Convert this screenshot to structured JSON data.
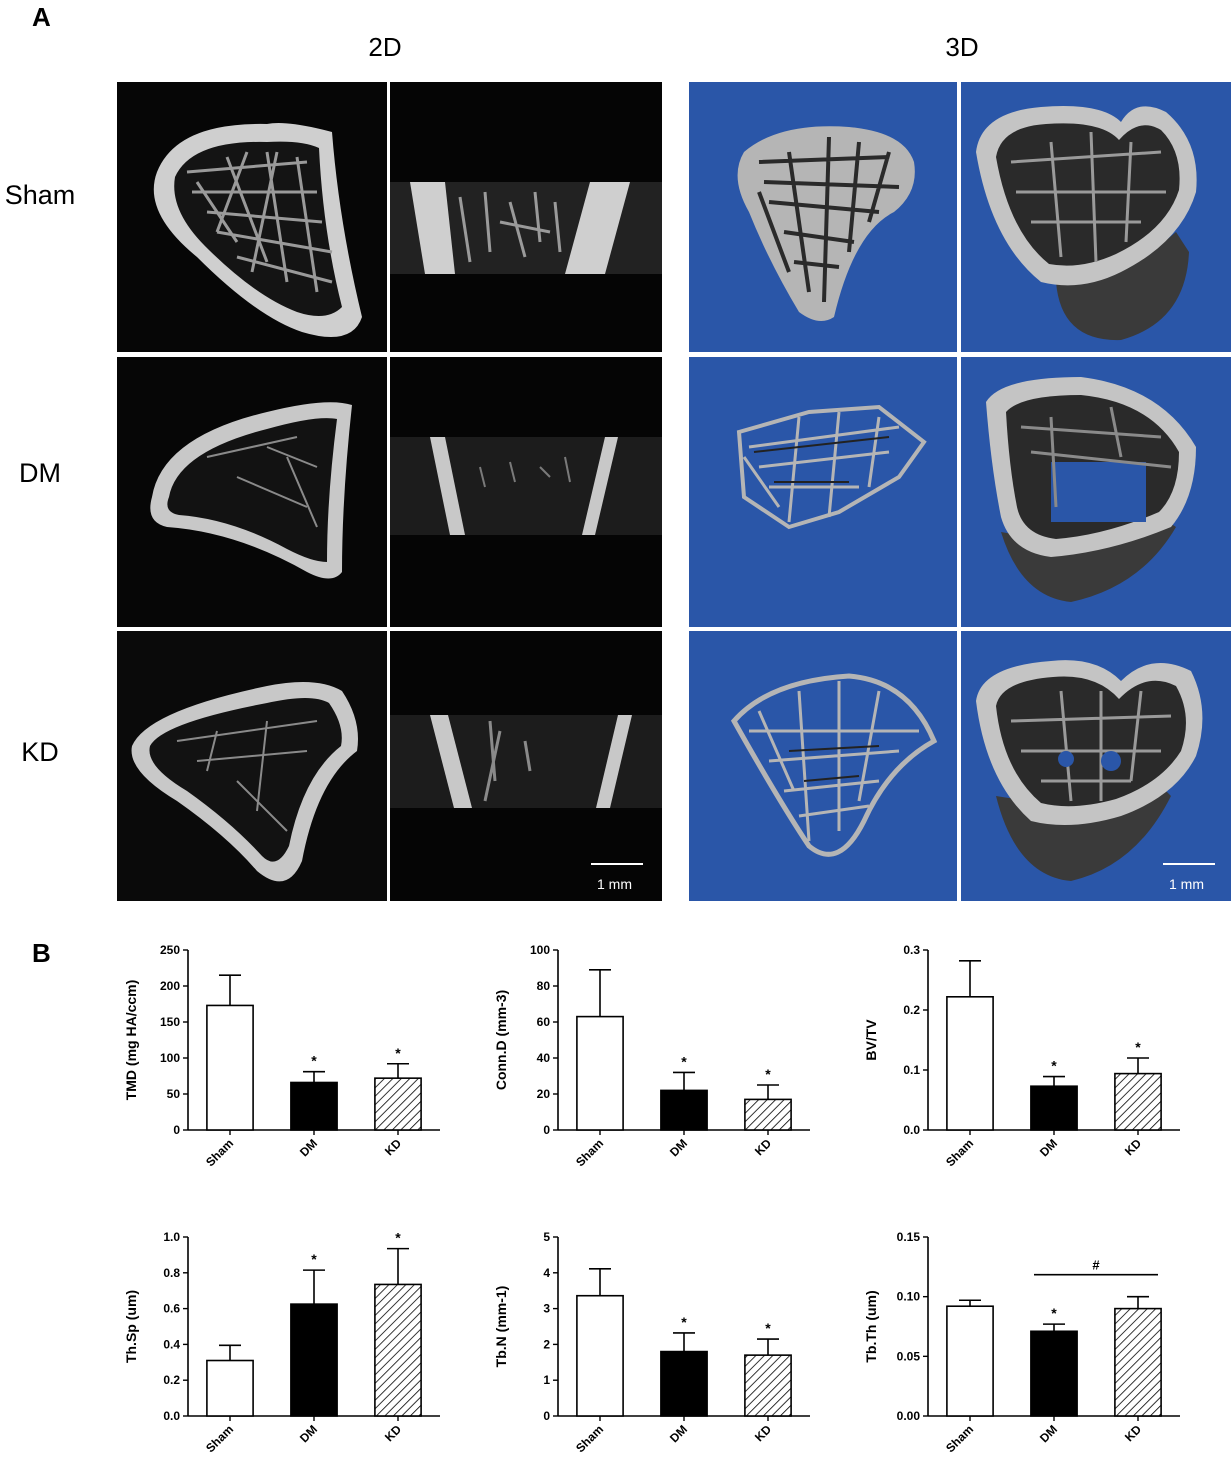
{
  "panel_labels": {
    "a": "A",
    "b": "B"
  },
  "panel_a": {
    "column_headers": [
      "2D",
      "3D"
    ],
    "row_labels": [
      "Sham",
      "DM",
      "KD"
    ],
    "scale_bar_2d": "1 mm",
    "scale_bar_3d": "1 mm",
    "colors": {
      "ct_background": "#050505",
      "render_background": "#2a56a8",
      "bone": "#cfcfcf"
    }
  },
  "chart_data": [
    {
      "type": "bar",
      "categories": [
        "Sham",
        "DM",
        "KD"
      ],
      "values": [
        173,
        66,
        72
      ],
      "errors": [
        42,
        15,
        20
      ],
      "significance": [
        "",
        "*",
        "*"
      ],
      "ylabel": "TMD (mg HA/ccm)",
      "ylim": [
        0,
        250
      ],
      "yticks": [
        "0",
        "50",
        "100",
        "150",
        "200",
        "250"
      ]
    },
    {
      "type": "bar",
      "categories": [
        "Sham",
        "DM",
        "KD"
      ],
      "values": [
        63,
        22,
        17
      ],
      "errors": [
        26,
        10,
        8
      ],
      "significance": [
        "",
        "*",
        "*"
      ],
      "ylabel": "Conn.D (mm-3)",
      "ylim": [
        0,
        100
      ],
      "yticks": [
        "0",
        "20",
        "40",
        "60",
        "80",
        "100"
      ]
    },
    {
      "type": "bar",
      "categories": [
        "Sham",
        "DM",
        "KD"
      ],
      "values": [
        0.222,
        0.073,
        0.094
      ],
      "errors": [
        0.06,
        0.016,
        0.026
      ],
      "significance": [
        "",
        "*",
        "*"
      ],
      "ylabel": "BV/TV",
      "ylim": [
        0,
        0.3
      ],
      "yticks": [
        "0.0",
        "0.1",
        "0.2",
        "0.3"
      ]
    },
    {
      "type": "bar",
      "categories": [
        "Sham",
        "DM",
        "KD"
      ],
      "values": [
        0.31,
        0.625,
        0.735
      ],
      "errors": [
        0.085,
        0.19,
        0.2
      ],
      "significance": [
        "",
        "*",
        "*"
      ],
      "ylabel": "Th.Sp (um)",
      "ylim": [
        0,
        1.0
      ],
      "yticks": [
        "0.0",
        "0.2",
        "0.4",
        "0.6",
        "0.8",
        "1.0"
      ]
    },
    {
      "type": "bar",
      "categories": [
        "Sham",
        "DM",
        "KD"
      ],
      "values": [
        3.36,
        1.8,
        1.7
      ],
      "errors": [
        0.75,
        0.52,
        0.45
      ],
      "significance": [
        "",
        "*",
        "*"
      ],
      "ylabel": "Tb.N (mm-1)",
      "ylim": [
        0,
        5
      ],
      "yticks": [
        "0",
        "1",
        "2",
        "3",
        "4",
        "5"
      ]
    },
    {
      "type": "bar",
      "categories": [
        "Sham",
        "DM",
        "KD"
      ],
      "values": [
        0.092,
        0.071,
        0.09
      ],
      "errors": [
        0.005,
        0.006,
        0.01
      ],
      "significance": [
        "",
        "*",
        ""
      ],
      "bracket": {
        "from": "DM",
        "to": "KD",
        "label": "#"
      },
      "ylabel": "Tb.Th (um)",
      "ylim": [
        0,
        0.15
      ],
      "yticks": [
        "0.00",
        "0.05",
        "0.10",
        "0.15"
      ]
    }
  ]
}
